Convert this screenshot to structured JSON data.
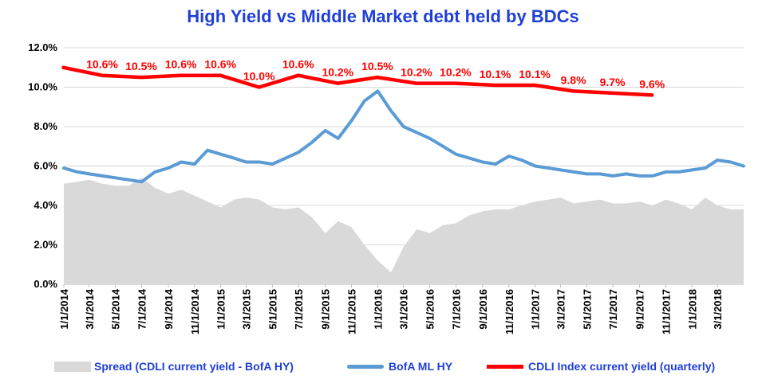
{
  "chart_data": {
    "type": "line",
    "title": "High Yield  vs  Middle Market debt held by BDCs",
    "ylim": [
      0,
      12
    ],
    "yticks": [
      "0.0%",
      "2.0%",
      "4.0%",
      "6.0%",
      "8.0%",
      "10.0%",
      "12.0%"
    ],
    "xticks": [
      "1/1/2014",
      "3/1/2014",
      "5/1/2014",
      "7/1/2014",
      "9/1/2014",
      "11/1/2014",
      "1/1/2015",
      "3/1/2015",
      "5/1/2015",
      "7/1/2015",
      "9/1/2015",
      "11/1/2015",
      "1/1/2016",
      "3/1/2016",
      "5/1/2016",
      "7/1/2016",
      "9/1/2016",
      "11/1/2016",
      "1/1/2017",
      "3/1/2017",
      "5/1/2017",
      "7/1/2017",
      "9/1/2017",
      "11/1/2017",
      "1/1/2018",
      "3/1/2018"
    ],
    "grid": "horizontal",
    "legend_position": "bottom",
    "series": [
      {
        "name": "Spread (CDLI current yield - BofA HY)",
        "kind": "area",
        "color": "#d9d9d9",
        "x": [
          "2014-01-01",
          "2014-02-01",
          "2014-03-01",
          "2014-04-01",
          "2014-05-01",
          "2014-06-01",
          "2014-07-01",
          "2014-08-01",
          "2014-09-01",
          "2014-10-01",
          "2014-11-01",
          "2014-12-01",
          "2015-01-01",
          "2015-02-01",
          "2015-03-01",
          "2015-04-01",
          "2015-05-01",
          "2015-06-01",
          "2015-07-01",
          "2015-08-01",
          "2015-09-01",
          "2015-10-01",
          "2015-11-01",
          "2015-12-01",
          "2016-01-01",
          "2016-02-01",
          "2016-03-01",
          "2016-04-01",
          "2016-05-01",
          "2016-06-01",
          "2016-07-01",
          "2016-08-01",
          "2016-09-01",
          "2016-10-01",
          "2016-11-01",
          "2016-12-01",
          "2017-01-01",
          "2017-02-01",
          "2017-03-01",
          "2017-04-01",
          "2017-05-01",
          "2017-06-01",
          "2017-07-01",
          "2017-08-01",
          "2017-09-01",
          "2017-10-01",
          "2017-11-01",
          "2017-12-01",
          "2018-01-01",
          "2018-02-01",
          "2018-03-01",
          "2018-04-01",
          "2018-05-01"
        ],
        "values": [
          5.1,
          5.2,
          5.3,
          5.1,
          5.0,
          5.0,
          5.4,
          4.9,
          4.6,
          4.8,
          4.5,
          4.2,
          3.9,
          4.3,
          4.4,
          4.3,
          3.9,
          3.8,
          3.9,
          3.4,
          2.6,
          3.2,
          2.9,
          2.0,
          1.2,
          0.6,
          1.9,
          2.8,
          2.6,
          3.0,
          3.1,
          3.5,
          3.7,
          3.8,
          3.8,
          4.0,
          4.2,
          4.3,
          4.4,
          4.1,
          4.2,
          4.3,
          4.1,
          4.1,
          4.2,
          4.0,
          4.3,
          4.1,
          3.8,
          4.4,
          4.0,
          3.8,
          3.8
        ]
      },
      {
        "name": "BofA ML HY",
        "kind": "line",
        "color": "#5b9bd5",
        "x": [
          "2014-01-01",
          "2014-02-01",
          "2014-03-01",
          "2014-04-01",
          "2014-05-01",
          "2014-06-01",
          "2014-07-01",
          "2014-08-01",
          "2014-09-01",
          "2014-10-01",
          "2014-11-01",
          "2014-12-01",
          "2015-01-01",
          "2015-02-01",
          "2015-03-01",
          "2015-04-01",
          "2015-05-01",
          "2015-06-01",
          "2015-07-01",
          "2015-08-01",
          "2015-09-01",
          "2015-10-01",
          "2015-11-01",
          "2015-12-01",
          "2016-01-01",
          "2016-02-01",
          "2016-03-01",
          "2016-04-01",
          "2016-05-01",
          "2016-06-01",
          "2016-07-01",
          "2016-08-01",
          "2016-09-01",
          "2016-10-01",
          "2016-11-01",
          "2016-12-01",
          "2017-01-01",
          "2017-02-01",
          "2017-03-01",
          "2017-04-01",
          "2017-05-01",
          "2017-06-01",
          "2017-07-01",
          "2017-08-01",
          "2017-09-01",
          "2017-10-01",
          "2017-11-01",
          "2017-12-01",
          "2018-01-01",
          "2018-02-01",
          "2018-03-01",
          "2018-04-01",
          "2018-05-01"
        ],
        "values": [
          5.9,
          5.7,
          5.6,
          5.5,
          5.4,
          5.3,
          5.2,
          5.7,
          5.9,
          6.2,
          6.1,
          6.8,
          6.6,
          6.4,
          6.2,
          6.2,
          6.1,
          6.4,
          6.7,
          7.2,
          7.8,
          7.4,
          8.3,
          9.3,
          9.8,
          8.8,
          8.0,
          7.7,
          7.4,
          7.0,
          6.6,
          6.4,
          6.2,
          6.1,
          6.5,
          6.3,
          6.0,
          5.9,
          5.8,
          5.7,
          5.6,
          5.6,
          5.5,
          5.6,
          5.5,
          5.5,
          5.7,
          5.7,
          5.8,
          5.9,
          6.3,
          6.2,
          6.0
        ]
      },
      {
        "name": "CDLI Index current yield (quarterly)",
        "kind": "line",
        "color": "#ff0000",
        "x": [
          "2013-12-31",
          "2014-03-31",
          "2014-06-30",
          "2014-09-30",
          "2014-12-31",
          "2015-03-31",
          "2015-06-30",
          "2015-09-30",
          "2015-12-31",
          "2016-03-31",
          "2016-06-30",
          "2016-09-30",
          "2016-12-31",
          "2017-03-31",
          "2017-06-30",
          "2017-09-30"
        ],
        "values": [
          11.0,
          10.6,
          10.5,
          10.6,
          10.6,
          10.0,
          10.6,
          10.2,
          10.5,
          10.2,
          10.2,
          10.1,
          10.1,
          9.8,
          9.7,
          9.6
        ],
        "labels": [
          "",
          "10.6%",
          "10.5%",
          "10.6%",
          "10.6%",
          "10.0%",
          "10.6%",
          "10.2%",
          "10.5%",
          "10.2%",
          "10.2%",
          "10.1%",
          "10.1%",
          "9.8%",
          "9.7%",
          "9.6%"
        ]
      }
    ]
  }
}
